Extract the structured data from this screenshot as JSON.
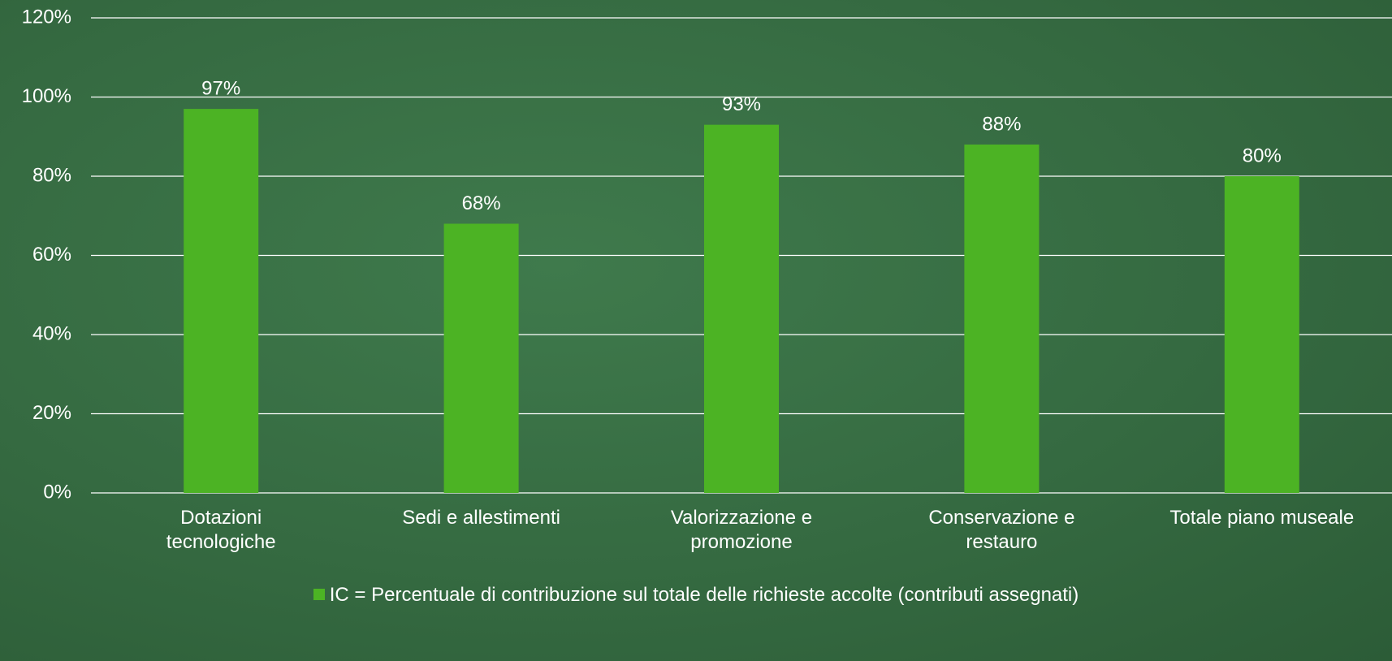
{
  "chart_data": {
    "type": "bar",
    "categories": [
      "Dotazioni\ntecnologiche",
      "Sedi e allestimenti",
      "Valorizzazione e\npromozione",
      "Conservazione e\nrestauro",
      "Totale piano museale"
    ],
    "series": [
      {
        "name": "IC = Percentuale di contribuzione sul totale delle richieste accolte (contributi assegnati)",
        "color": "#4cb324",
        "values": [
          97,
          68,
          93,
          88,
          80
        ],
        "value_labels": [
          "97%",
          "68%",
          "93%",
          "88%",
          "80%"
        ]
      }
    ],
    "ylim": [
      0,
      120
    ],
    "yticks": [
      {
        "value": 0,
        "label": "0%"
      },
      {
        "value": 20,
        "label": "20%"
      },
      {
        "value": 40,
        "label": "40%"
      },
      {
        "value": 60,
        "label": "60%"
      },
      {
        "value": 80,
        "label": "80%"
      },
      {
        "value": 100,
        "label": "100%"
      },
      {
        "value": 120,
        "label": "120%"
      }
    ],
    "grid": true,
    "legend": "bottom"
  }
}
